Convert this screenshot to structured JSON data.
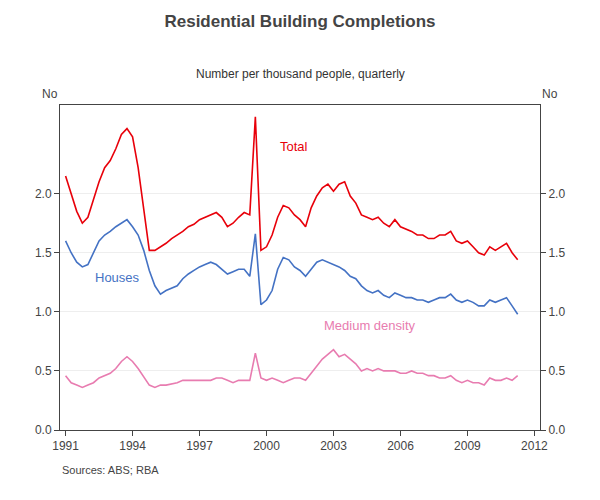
{
  "chart_data": {
    "type": "line",
    "title": "Residential Building Completions",
    "subtitle": "Number per thousand people, quarterly",
    "ylabel": "No",
    "y2label": "No",
    "source": "Sources: ABS; RBA",
    "x": [
      1991,
      1991.25,
      1991.5,
      1991.75,
      1992,
      1992.25,
      1992.5,
      1992.75,
      1993,
      1993.25,
      1993.5,
      1993.75,
      1994,
      1994.25,
      1994.5,
      1994.75,
      1995,
      1995.25,
      1995.5,
      1995.75,
      1996,
      1996.25,
      1996.5,
      1996.75,
      1997,
      1997.25,
      1997.5,
      1997.75,
      1998,
      1998.25,
      1998.5,
      1998.75,
      1999,
      1999.25,
      1999.5,
      1999.75,
      2000,
      2000.25,
      2000.5,
      2000.75,
      2001,
      2001.25,
      2001.5,
      2001.75,
      2002,
      2002.25,
      2002.5,
      2002.75,
      2003,
      2003.25,
      2003.5,
      2003.75,
      2004,
      2004.25,
      2004.5,
      2004.75,
      2005,
      2005.25,
      2005.5,
      2005.75,
      2006,
      2006.25,
      2006.5,
      2006.75,
      2007,
      2007.25,
      2007.5,
      2007.75,
      2008,
      2008.25,
      2008.5,
      2008.75,
      2009,
      2009.25,
      2009.5,
      2009.75,
      2010,
      2010.25,
      2010.5,
      2010.75,
      2011,
      2011.25
    ],
    "series": [
      {
        "name": "Total",
        "color": "#e8000a",
        "values": [
          2.15,
          2.0,
          1.85,
          1.75,
          1.8,
          1.95,
          2.1,
          2.22,
          2.28,
          2.38,
          2.5,
          2.55,
          2.48,
          2.22,
          1.88,
          1.52,
          1.52,
          1.55,
          1.58,
          1.62,
          1.65,
          1.68,
          1.72,
          1.74,
          1.78,
          1.8,
          1.82,
          1.84,
          1.8,
          1.72,
          1.75,
          1.8,
          1.84,
          1.82,
          2.65,
          1.52,
          1.55,
          1.65,
          1.8,
          1.9,
          1.88,
          1.82,
          1.78,
          1.72,
          1.88,
          1.98,
          2.05,
          2.08,
          2.02,
          2.08,
          2.1,
          1.98,
          1.92,
          1.82,
          1.8,
          1.78,
          1.8,
          1.75,
          1.72,
          1.78,
          1.72,
          1.7,
          1.68,
          1.65,
          1.65,
          1.62,
          1.62,
          1.65,
          1.65,
          1.68,
          1.6,
          1.58,
          1.6,
          1.55,
          1.5,
          1.48,
          1.55,
          1.52,
          1.55,
          1.58,
          1.5,
          1.44
        ]
      },
      {
        "name": "Houses",
        "color": "#4472c4",
        "values": [
          1.6,
          1.5,
          1.42,
          1.38,
          1.4,
          1.5,
          1.6,
          1.65,
          1.68,
          1.72,
          1.75,
          1.78,
          1.72,
          1.65,
          1.52,
          1.35,
          1.22,
          1.15,
          1.18,
          1.2,
          1.22,
          1.28,
          1.32,
          1.35,
          1.38,
          1.4,
          1.42,
          1.4,
          1.36,
          1.32,
          1.34,
          1.36,
          1.36,
          1.3,
          1.66,
          1.06,
          1.1,
          1.18,
          1.36,
          1.46,
          1.44,
          1.38,
          1.35,
          1.3,
          1.36,
          1.42,
          1.44,
          1.42,
          1.4,
          1.38,
          1.35,
          1.3,
          1.28,
          1.22,
          1.18,
          1.16,
          1.18,
          1.14,
          1.12,
          1.16,
          1.14,
          1.12,
          1.12,
          1.1,
          1.1,
          1.08,
          1.1,
          1.12,
          1.12,
          1.15,
          1.1,
          1.08,
          1.1,
          1.08,
          1.05,
          1.05,
          1.1,
          1.08,
          1.1,
          1.12,
          1.05,
          0.98
        ]
      },
      {
        "name": "Medium density",
        "color": "#e87cb0",
        "values": [
          0.46,
          0.4,
          0.38,
          0.36,
          0.38,
          0.4,
          0.44,
          0.46,
          0.48,
          0.52,
          0.58,
          0.62,
          0.58,
          0.52,
          0.45,
          0.38,
          0.36,
          0.38,
          0.38,
          0.39,
          0.4,
          0.42,
          0.42,
          0.42,
          0.42,
          0.42,
          0.42,
          0.44,
          0.44,
          0.42,
          0.4,
          0.42,
          0.42,
          0.42,
          0.65,
          0.44,
          0.42,
          0.44,
          0.42,
          0.4,
          0.42,
          0.44,
          0.44,
          0.42,
          0.48,
          0.54,
          0.6,
          0.64,
          0.68,
          0.62,
          0.64,
          0.6,
          0.56,
          0.5,
          0.52,
          0.5,
          0.52,
          0.5,
          0.5,
          0.5,
          0.48,
          0.48,
          0.5,
          0.48,
          0.48,
          0.46,
          0.46,
          0.44,
          0.44,
          0.46,
          0.42,
          0.4,
          0.42,
          0.4,
          0.4,
          0.38,
          0.44,
          0.42,
          0.42,
          0.44,
          0.42,
          0.46
        ]
      }
    ],
    "annotations": [
      {
        "text": "Total",
        "x": 2000.5,
        "y": 2.32,
        "color": "#e8000a"
      },
      {
        "text": "Houses",
        "x": 1992.25,
        "y": 1.21,
        "color": "#4472c4"
      },
      {
        "text": "Medium density",
        "x": 2002.5,
        "y": 0.8,
        "color": "#e87cb0"
      }
    ],
    "xlim": [
      1990.75,
      2012.25
    ],
    "xticks": [
      1991,
      1994,
      1997,
      2000,
      2003,
      2006,
      2009,
      2012
    ],
    "ylim": [
      0.0,
      2.75
    ],
    "yticks": [
      {
        "value": 0.0,
        "label": "0.0"
      },
      {
        "value": 0.5,
        "label": "0.5"
      },
      {
        "value": 1.0,
        "label": "1.0"
      },
      {
        "value": 1.5,
        "label": "1.5"
      },
      {
        "value": 2.0,
        "label": "2.0"
      }
    ],
    "y2lim": [
      0.0,
      2.75
    ],
    "y2ticks": [
      {
        "value": 0.0,
        "label": "0.0"
      },
      {
        "value": 0.5,
        "label": "0.5"
      },
      {
        "value": 1.0,
        "label": "1.0"
      },
      {
        "value": 1.5,
        "label": "1.5"
      },
      {
        "value": 2.0,
        "label": "2.0"
      }
    ],
    "grid": true
  }
}
